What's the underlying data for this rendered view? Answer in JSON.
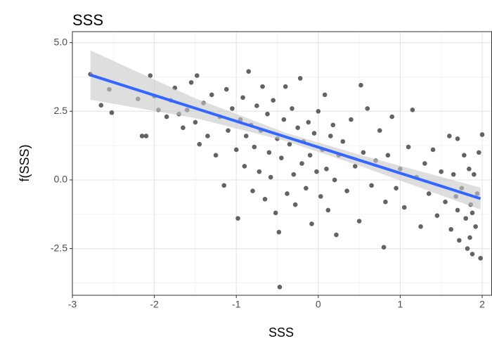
{
  "chart_data": {
    "type": "scatter",
    "title": "SSS",
    "xlabel": "SSS",
    "ylabel": "f(SSS)",
    "xlim": [
      -3,
      2.12
    ],
    "ylim": [
      -4.2,
      5.4
    ],
    "xticks": [
      -3,
      -2,
      -1,
      0,
      1,
      2
    ],
    "yticks": [
      -2.5,
      {
        "value": 0,
        "label": "0.0"
      },
      2.5,
      {
        "value": 5,
        "label": "5.0"
      }
    ],
    "minor_xticks": [
      -2.5,
      -1.5,
      -0.5,
      0.5,
      1.5
    ],
    "minor_yticks": [
      -3.75,
      -1.25,
      1.25,
      3.75
    ],
    "grid": true,
    "point_color": "#636363",
    "x": [
      -2.78,
      -2.65,
      -2.55,
      -2.52,
      -2.2,
      -2.15,
      -2.1,
      -2.05,
      -2.0,
      -1.95,
      -1.85,
      -1.8,
      -1.75,
      -1.7,
      -1.65,
      -1.6,
      -1.55,
      -1.5,
      -1.48,
      -1.45,
      -1.4,
      -1.35,
      -1.3,
      -1.25,
      -1.2,
      -1.15,
      -1.12,
      -1.1,
      -1.05,
      -1.0,
      -0.98,
      -0.95,
      -0.92,
      -0.9,
      -0.88,
      -0.85,
      -0.82,
      -0.8,
      -0.78,
      -0.75,
      -0.72,
      -0.7,
      -0.68,
      -0.65,
      -0.62,
      -0.6,
      -0.58,
      -0.55,
      -0.52,
      -0.5,
      -0.48,
      -0.47,
      -0.45,
      -0.42,
      -0.4,
      -0.38,
      -0.35,
      -0.32,
      -0.3,
      -0.28,
      -0.25,
      -0.22,
      -0.2,
      -0.18,
      -0.15,
      -0.12,
      -0.1,
      -0.08,
      -0.05,
      -0.02,
      0.0,
      0.03,
      0.05,
      0.08,
      0.1,
      0.12,
      0.15,
      0.18,
      0.2,
      0.22,
      0.25,
      0.3,
      0.35,
      0.4,
      0.45,
      0.5,
      0.52,
      0.55,
      0.6,
      0.65,
      0.7,
      0.75,
      0.8,
      0.82,
      0.85,
      0.9,
      0.95,
      1.0,
      1.05,
      1.1,
      1.15,
      1.2,
      1.25,
      1.3,
      1.35,
      1.4,
      1.45,
      1.5,
      1.55,
      1.6,
      1.62,
      1.65,
      1.68,
      1.7,
      1.72,
      1.75,
      1.78,
      1.8,
      1.82,
      1.84,
      1.86,
      1.88,
      1.9,
      1.92,
      1.94,
      1.96,
      1.98,
      2.0,
      1.85,
      1.7,
      1.88
    ],
    "y": [
      3.85,
      2.72,
      3.3,
      2.45,
      2.95,
      1.6,
      1.6,
      3.8,
      3.05,
      2.55,
      2.3,
      2.9,
      3.35,
      2.4,
      1.9,
      2.55,
      3.55,
      2.1,
      3.8,
      1.3,
      2.8,
      1.6,
      3.1,
      0.9,
      2.3,
      -0.2,
      3.3,
      1.8,
      2.6,
      1.1,
      -1.4,
      2.2,
      3.0,
      0.5,
      1.6,
      3.95,
      2.0,
      -0.4,
      1.2,
      2.7,
      0.3,
      1.8,
      3.4,
      -0.7,
      2.4,
      1.0,
      0.1,
      2.9,
      -1.2,
      1.5,
      -1.9,
      -3.9,
      0.8,
      2.2,
      3.4,
      -0.5,
      1.3,
      2.6,
      0.2,
      -0.9,
      1.9,
      3.7,
      0.6,
      1.4,
      -0.3,
      2.1,
      0.9,
      -1.6,
      1.7,
      0.3,
      2.5,
      -0.6,
      1.1,
      3.1,
      0.4,
      -1.1,
      1.6,
      2.0,
      0.0,
      -2.0,
      0.9,
      1.4,
      -0.4,
      2.2,
      0.5,
      -1.5,
      3.45,
      1.0,
      2.6,
      -0.2,
      0.7,
      1.8,
      -2.45,
      -0.8,
      0.9,
      2.3,
      -0.3,
      0.4,
      -1.0,
      1.2,
      2.55,
      0.1,
      -1.7,
      0.6,
      -0.5,
      1.1,
      -1.3,
      0.3,
      -0.8,
      1.6,
      -1.8,
      0.2,
      -0.6,
      1.5,
      -2.2,
      -0.3,
      0.9,
      -1.4,
      -2.5,
      0.4,
      -0.9,
      -2.7,
      0.2,
      -1.7,
      -0.5,
      1.0,
      -2.85,
      1.65,
      -2.1,
      -1.1,
      -1.2
    ],
    "smooth": {
      "color": "#3366ff",
      "band_color": "#c8c8c8",
      "x": [
        -2.78,
        -1.5,
        -0.4,
        0.5,
        1.98
      ],
      "y": [
        3.82,
        2.61,
        1.57,
        0.72,
        -0.68
      ],
      "ymin": [
        2.92,
        2.25,
        1.42,
        0.52,
        -1.08
      ],
      "ymax": [
        4.72,
        2.97,
        1.72,
        0.92,
        -0.28
      ]
    }
  }
}
